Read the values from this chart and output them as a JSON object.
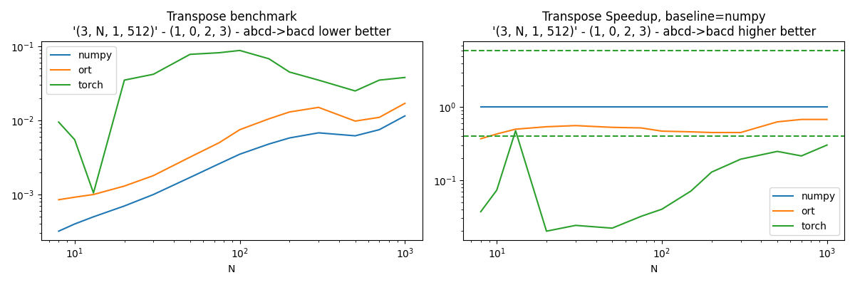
{
  "title1": "Transpose benchmark\n'(3, N, 1, 512)' - (1, 0, 2, 3) - abcd->bacd lower better",
  "title2": "Transpose Speedup, baseline=numpy\n'(3, N, 1, 512)' - (1, 0, 2, 3) - abcd->bacd higher better",
  "xlabel": "N",
  "N_values": [
    8,
    10,
    13,
    20,
    30,
    50,
    75,
    100,
    150,
    200,
    300,
    500,
    700,
    1000
  ],
  "numpy_time": [
    0.00032,
    0.0004,
    0.0005,
    0.0007,
    0.001,
    0.0017,
    0.0026,
    0.0035,
    0.0048,
    0.0058,
    0.0068,
    0.0062,
    0.0075,
    0.0115
  ],
  "ort_time": [
    0.00085,
    0.00092,
    0.001,
    0.0013,
    0.0018,
    0.0032,
    0.005,
    0.0075,
    0.0105,
    0.013,
    0.015,
    0.0098,
    0.011,
    0.017
  ],
  "torch_time": [
    0.0095,
    0.0055,
    0.00105,
    0.035,
    0.042,
    0.078,
    0.082,
    0.088,
    0.068,
    0.045,
    0.035,
    0.025,
    0.035,
    0.038
  ],
  "speedup_numpy": [
    1.0,
    1.0,
    1.0,
    1.0,
    1.0,
    1.0,
    1.0,
    1.0,
    1.0,
    1.0,
    1.0,
    1.0,
    1.0,
    1.0
  ],
  "speedup_ort": [
    0.37,
    0.43,
    0.5,
    0.54,
    0.56,
    0.53,
    0.52,
    0.47,
    0.46,
    0.45,
    0.45,
    0.63,
    0.68,
    0.68
  ],
  "speedup_torch": [
    0.037,
    0.073,
    0.476,
    0.02,
    0.024,
    0.022,
    0.032,
    0.04,
    0.071,
    0.129,
    0.194,
    0.248,
    0.215,
    0.303
  ],
  "hline_torch_max": 6.0,
  "hline_torch_median": 0.4,
  "color_numpy": "#1f77b4",
  "color_ort": "#ff7f0e",
  "color_torch": "#2ca02c",
  "figsize": [
    12.0,
    4.0
  ],
  "dpi": 100
}
